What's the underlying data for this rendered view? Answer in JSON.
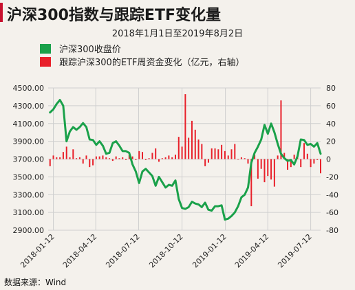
{
  "title": "沪深300指数与跟踪ETF变化量",
  "subtitle": "2018年1月1日至2019年8月2日",
  "source": "数据来源：Wind",
  "colors": {
    "accent": "#c8102e",
    "index_line": "#1aa14a",
    "etf_bar": "#e8202a",
    "grid": "#cfcfcf"
  },
  "chart_data": {
    "type": "bar+line",
    "title": "沪深300指数与跟踪ETF变化量",
    "subtitle": "2018年1月1日至2019年8月2日",
    "legend_position": "top-left",
    "grid": true,
    "x_ticks": [
      "2018-01-12",
      "2018-04-12",
      "2018-07-12",
      "2018-10-12",
      "2019-01-12",
      "2019-04-12",
      "2019-07-12"
    ],
    "x_range": [
      "2018-01-01",
      "2019-08-02"
    ],
    "y_left": {
      "lim": [
        2900,
        4500
      ],
      "ticks": [
        "4500.00",
        "4300.00",
        "4100.00",
        "3900.00",
        "3700.00",
        "3500.00",
        "3300.00",
        "3100.00",
        "2900.00"
      ]
    },
    "y_right": {
      "lim": [
        -80,
        80
      ],
      "ticks": [
        "80",
        "60",
        "40",
        "20",
        "0",
        "-20",
        "-40",
        "-60",
        "-80"
      ]
    },
    "series": [
      {
        "name": "沪深300收盘价",
        "type": "line",
        "axis": "left",
        "color": "#1aa14a",
        "points": [
          [
            "2018-01-05",
            4225
          ],
          [
            "2018-01-12",
            4260
          ],
          [
            "2018-01-19",
            4320
          ],
          [
            "2018-01-26",
            4365
          ],
          [
            "2018-02-02",
            4300
          ],
          [
            "2018-02-09",
            3900
          ],
          [
            "2018-02-16",
            4010
          ],
          [
            "2018-02-23",
            4060
          ],
          [
            "2018-03-02",
            4030
          ],
          [
            "2018-03-09",
            4060
          ],
          [
            "2018-03-16",
            4105
          ],
          [
            "2018-03-23",
            4060
          ],
          [
            "2018-03-30",
            3920
          ],
          [
            "2018-04-06",
            3915
          ],
          [
            "2018-04-13",
            3860
          ],
          [
            "2018-04-20",
            3900
          ],
          [
            "2018-04-27",
            3850
          ],
          [
            "2018-05-04",
            3760
          ],
          [
            "2018-05-11",
            3770
          ],
          [
            "2018-05-18",
            3880
          ],
          [
            "2018-05-25",
            3900
          ],
          [
            "2018-06-01",
            3850
          ],
          [
            "2018-06-08",
            3790
          ],
          [
            "2018-06-15",
            3790
          ],
          [
            "2018-06-22",
            3770
          ],
          [
            "2018-06-29",
            3640
          ],
          [
            "2018-07-06",
            3560
          ],
          [
            "2018-07-13",
            3430
          ],
          [
            "2018-07-20",
            3560
          ],
          [
            "2018-07-27",
            3590
          ],
          [
            "2018-08-03",
            3550
          ],
          [
            "2018-08-10",
            3510
          ],
          [
            "2018-08-17",
            3400
          ],
          [
            "2018-08-24",
            3500
          ],
          [
            "2018-08-31",
            3440
          ],
          [
            "2018-09-07",
            3380
          ],
          [
            "2018-09-14",
            3410
          ],
          [
            "2018-09-21",
            3400
          ],
          [
            "2018-09-28",
            3460
          ],
          [
            "2018-10-05",
            3250
          ],
          [
            "2018-10-12",
            3150
          ],
          [
            "2018-10-19",
            3140
          ],
          [
            "2018-10-26",
            3160
          ],
          [
            "2018-11-02",
            3220
          ],
          [
            "2018-11-09",
            3200
          ],
          [
            "2018-11-16",
            3190
          ],
          [
            "2018-11-23",
            3160
          ],
          [
            "2018-11-30",
            3210
          ],
          [
            "2018-12-07",
            3130
          ],
          [
            "2018-12-14",
            3120
          ],
          [
            "2018-12-21",
            3170
          ],
          [
            "2018-12-28",
            3170
          ],
          [
            "2019-01-04",
            3180
          ],
          [
            "2019-01-11",
            3020
          ],
          [
            "2019-01-18",
            3030
          ],
          [
            "2019-01-25",
            3060
          ],
          [
            "2019-02-01",
            3100
          ],
          [
            "2019-02-08",
            3170
          ],
          [
            "2019-02-15",
            3270
          ],
          [
            "2019-02-22",
            3300
          ],
          [
            "2019-03-01",
            3380
          ],
          [
            "2019-03-08",
            3660
          ],
          [
            "2019-03-15",
            3770
          ],
          [
            "2019-03-22",
            3840
          ],
          [
            "2019-03-29",
            3920
          ],
          [
            "2019-04-05",
            4085
          ],
          [
            "2019-04-12",
            3985
          ],
          [
            "2019-04-19",
            4100
          ],
          [
            "2019-04-26",
            4000
          ],
          [
            "2019-05-03",
            3870
          ],
          [
            "2019-05-10",
            3760
          ],
          [
            "2019-05-17",
            3710
          ],
          [
            "2019-05-24",
            3680
          ],
          [
            "2019-05-31",
            3690
          ],
          [
            "2019-06-07",
            3640
          ],
          [
            "2019-06-14",
            3730
          ],
          [
            "2019-06-21",
            3920
          ],
          [
            "2019-06-28",
            3915
          ],
          [
            "2019-07-05",
            3860
          ],
          [
            "2019-07-12",
            3870
          ],
          [
            "2019-07-19",
            3840
          ],
          [
            "2019-07-26",
            3880
          ],
          [
            "2019-08-02",
            3760
          ]
        ]
      },
      {
        "name": "跟踪沪深300的ETF周资金变化（亿元，右轴）",
        "type": "bar",
        "axis": "right",
        "color": "#e8202a",
        "points": [
          [
            "2018-01-05",
            -8
          ],
          [
            "2018-01-12",
            4
          ],
          [
            "2018-01-19",
            2
          ],
          [
            "2018-01-26",
            2
          ],
          [
            "2018-02-02",
            8
          ],
          [
            "2018-02-09",
            14
          ],
          [
            "2018-02-16",
            2
          ],
          [
            "2018-02-23",
            11
          ],
          [
            "2018-03-02",
            1
          ],
          [
            "2018-03-09",
            2
          ],
          [
            "2018-03-16",
            -5
          ],
          [
            "2018-03-23",
            4
          ],
          [
            "2018-03-30",
            -9
          ],
          [
            "2018-04-06",
            -7
          ],
          [
            "2018-04-13",
            3
          ],
          [
            "2018-04-20",
            3
          ],
          [
            "2018-04-27",
            4
          ],
          [
            "2018-05-04",
            2
          ],
          [
            "2018-05-11",
            1
          ],
          [
            "2018-05-18",
            -2
          ],
          [
            "2018-05-25",
            3
          ],
          [
            "2018-06-01",
            1
          ],
          [
            "2018-06-08",
            2
          ],
          [
            "2018-06-15",
            -1
          ],
          [
            "2018-06-22",
            5
          ],
          [
            "2018-06-29",
            3
          ],
          [
            "2018-07-06",
            -1
          ],
          [
            "2018-07-13",
            9
          ],
          [
            "2018-07-20",
            8
          ],
          [
            "2018-07-27",
            -1
          ],
          [
            "2018-08-03",
            1
          ],
          [
            "2018-08-10",
            7
          ],
          [
            "2018-08-17",
            12
          ],
          [
            "2018-08-24",
            -3
          ],
          [
            "2018-08-31",
            1
          ],
          [
            "2018-09-07",
            2
          ],
          [
            "2018-09-14",
            4
          ],
          [
            "2018-09-21",
            2
          ],
          [
            "2018-09-28",
            5
          ],
          [
            "2018-10-05",
            25
          ],
          [
            "2018-10-12",
            14
          ],
          [
            "2018-10-19",
            73
          ],
          [
            "2018-10-26",
            24
          ],
          [
            "2018-11-02",
            43
          ],
          [
            "2018-11-09",
            33
          ],
          [
            "2018-11-16",
            22
          ],
          [
            "2018-11-23",
            17
          ],
          [
            "2018-11-30",
            -8
          ],
          [
            "2018-12-07",
            -4
          ],
          [
            "2018-12-14",
            12
          ],
          [
            "2018-12-21",
            12
          ],
          [
            "2018-12-28",
            11
          ],
          [
            "2019-01-04",
            16
          ],
          [
            "2019-01-11",
            9
          ],
          [
            "2019-01-18",
            4
          ],
          [
            "2019-01-25",
            11
          ],
          [
            "2019-02-01",
            17
          ],
          [
            "2019-02-08",
            0
          ],
          [
            "2019-02-15",
            2
          ],
          [
            "2019-02-22",
            1
          ],
          [
            "2019-03-01",
            -5
          ],
          [
            "2019-03-08",
            -53
          ],
          [
            "2019-03-15",
            5
          ],
          [
            "2019-03-22",
            -22
          ],
          [
            "2019-03-29",
            -11
          ],
          [
            "2019-04-05",
            -26
          ],
          [
            "2019-04-12",
            -19
          ],
          [
            "2019-04-19",
            -23
          ],
          [
            "2019-04-26",
            -31
          ],
          [
            "2019-05-03",
            4
          ],
          [
            "2019-05-10",
            66
          ],
          [
            "2019-05-17",
            7
          ],
          [
            "2019-05-24",
            -12
          ],
          [
            "2019-05-31",
            -9
          ],
          [
            "2019-06-07",
            5
          ],
          [
            "2019-06-14",
            2
          ],
          [
            "2019-06-21",
            -9
          ],
          [
            "2019-06-28",
            18
          ],
          [
            "2019-07-05",
            6
          ],
          [
            "2019-07-12",
            -9
          ],
          [
            "2019-07-19",
            -5
          ],
          [
            "2019-07-26",
            -1
          ],
          [
            "2019-08-02",
            -16
          ]
        ]
      }
    ]
  }
}
